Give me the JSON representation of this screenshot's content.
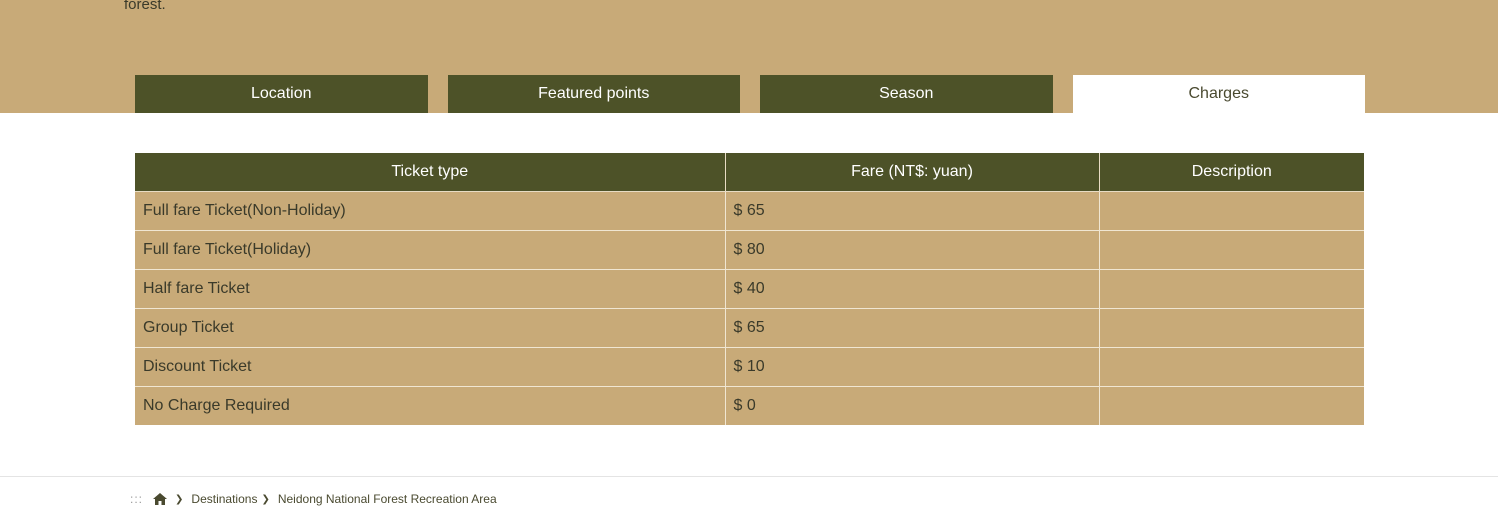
{
  "intro": {
    "text": "forest."
  },
  "tabs": [
    {
      "label": "Location",
      "active": false
    },
    {
      "label": "Featured points",
      "active": false
    },
    {
      "label": "Season",
      "active": false
    },
    {
      "label": "Charges",
      "active": true
    }
  ],
  "fare_table": {
    "headers": [
      "Ticket type",
      "Fare (NT$: yuan)",
      "Description"
    ],
    "rows": [
      {
        "type": "Full fare Ticket(Non-Holiday)",
        "fare": "$ 65",
        "description": ""
      },
      {
        "type": "Full fare Ticket(Holiday)",
        "fare": "$ 80",
        "description": ""
      },
      {
        "type": "Half fare Ticket",
        "fare": "$ 40",
        "description": ""
      },
      {
        "type": "Group Ticket",
        "fare": "$ 65",
        "description": ""
      },
      {
        "type": "Discount Ticket",
        "fare": "$ 10",
        "description": ""
      },
      {
        "type": "No Charge Required",
        "fare": "$ 0",
        "description": ""
      }
    ]
  },
  "breadcrumb": {
    "accesskey": ":::",
    "home_icon": "home-icon",
    "items": [
      "Destinations",
      "Neidong National Forest Recreation Area"
    ]
  },
  "colors": {
    "band": "#c8aa78",
    "tab_dark": "#4d5228",
    "header_dark": "#4d5228"
  }
}
